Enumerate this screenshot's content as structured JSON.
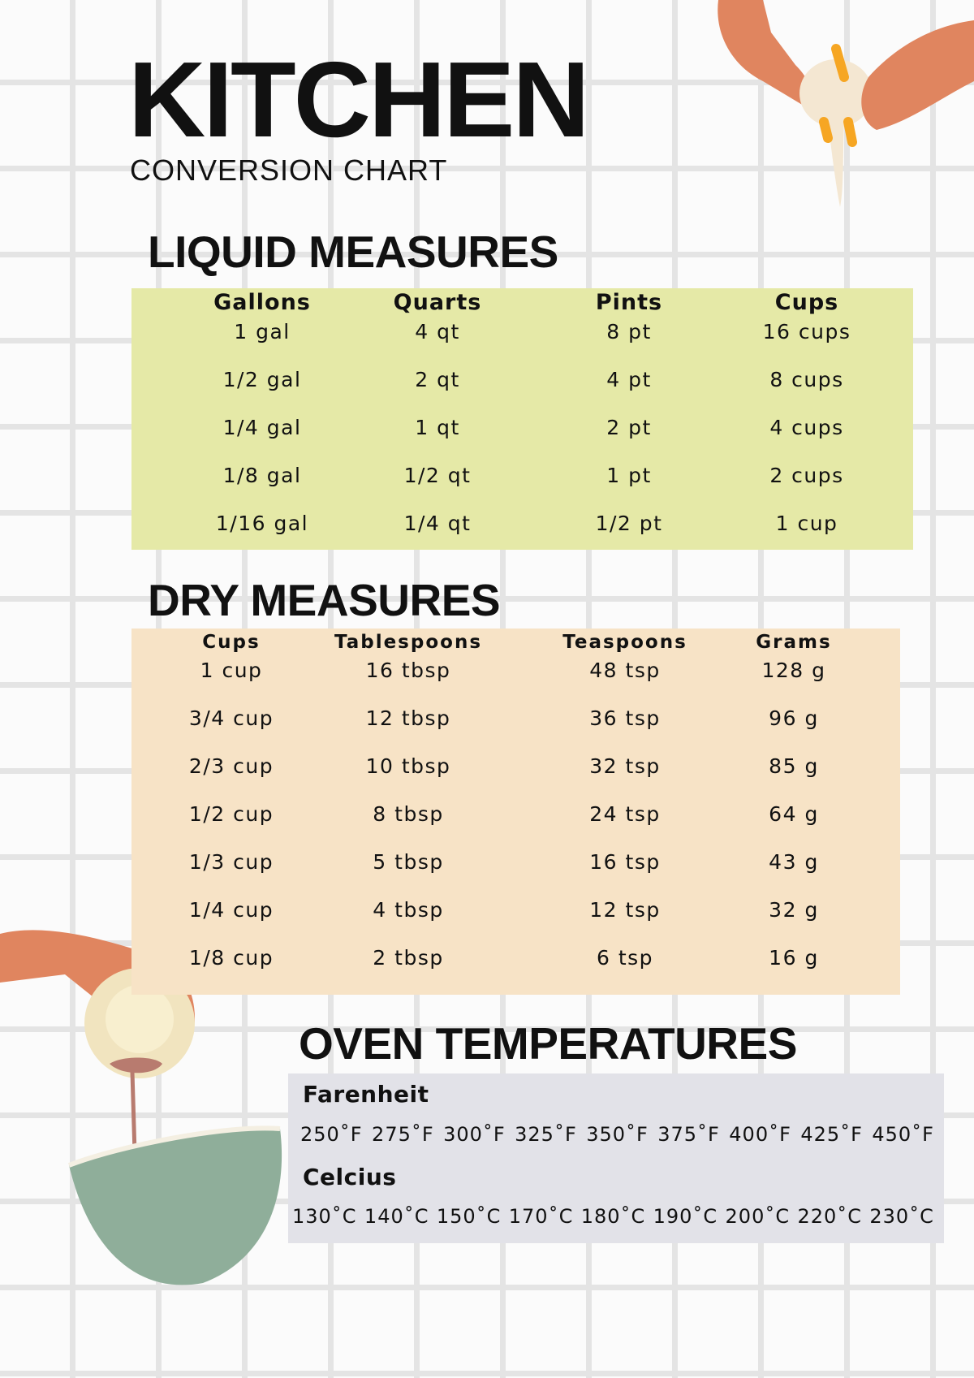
{
  "header": {
    "title": "KITCHEN",
    "subtitle": "CONVERSION CHART"
  },
  "liquid": {
    "title": "LIQUID MEASURES",
    "color": "#e5e9a7",
    "columns": [
      "Gallons",
      "Quarts",
      "Pints",
      "Cups"
    ],
    "rows": [
      [
        "1 gal",
        "4 qt",
        "8 pt",
        "16 cups"
      ],
      [
        "1/2 gal",
        "2 qt",
        "4 pt",
        "8 cups"
      ],
      [
        "1/4 gal",
        "1 qt",
        "2 pt",
        "4 cups"
      ],
      [
        "1/8 gal",
        "1/2 qt",
        "1 pt",
        "2 cups"
      ],
      [
        "1/16 gal",
        "1/4 qt",
        "1/2 pt",
        "1 cup"
      ]
    ]
  },
  "dry": {
    "title": "DRY MEASURES",
    "color": "#f7e3c6",
    "columns": [
      "Cups",
      "Tablespoons",
      "Teaspoons",
      "Grams"
    ],
    "rows": [
      [
        "1 cup",
        "16 tbsp",
        "48 tsp",
        "128 g"
      ],
      [
        "3/4 cup",
        "12 tbsp",
        "36 tsp",
        "96 g"
      ],
      [
        "2/3 cup",
        "10 tbsp",
        "32 tsp",
        "85 g"
      ],
      [
        "1/2 cup",
        "8 tbsp",
        "24 tsp",
        "64 g"
      ],
      [
        "1/3 cup",
        "5 tbsp",
        "16 tsp",
        "43 g"
      ],
      [
        "1/4 cup",
        "4 tbsp",
        "12 tsp",
        "32 g"
      ],
      [
        "1/8 cup",
        "2 tbsp",
        "6 tsp",
        "16 g"
      ]
    ]
  },
  "oven": {
    "title": "OVEN TEMPERATURES",
    "color": "#e2e2e8",
    "fahrenheit_label": "Farenheit",
    "fahrenheit": [
      "250˚F",
      "275˚F",
      "300˚F",
      "325˚F",
      "350˚F",
      "375˚F",
      "400˚F",
      "425˚F",
      "450˚F"
    ],
    "celsius_label": "Celcius",
    "celsius": [
      "130˚C",
      "140˚C",
      "150˚C",
      "170˚C",
      "180˚C",
      "190˚C",
      "200˚C",
      "220˚C",
      "230˚C"
    ]
  },
  "illustrations": [
    "hands-cracking-egg",
    "hand-pouring-into-bowl"
  ]
}
